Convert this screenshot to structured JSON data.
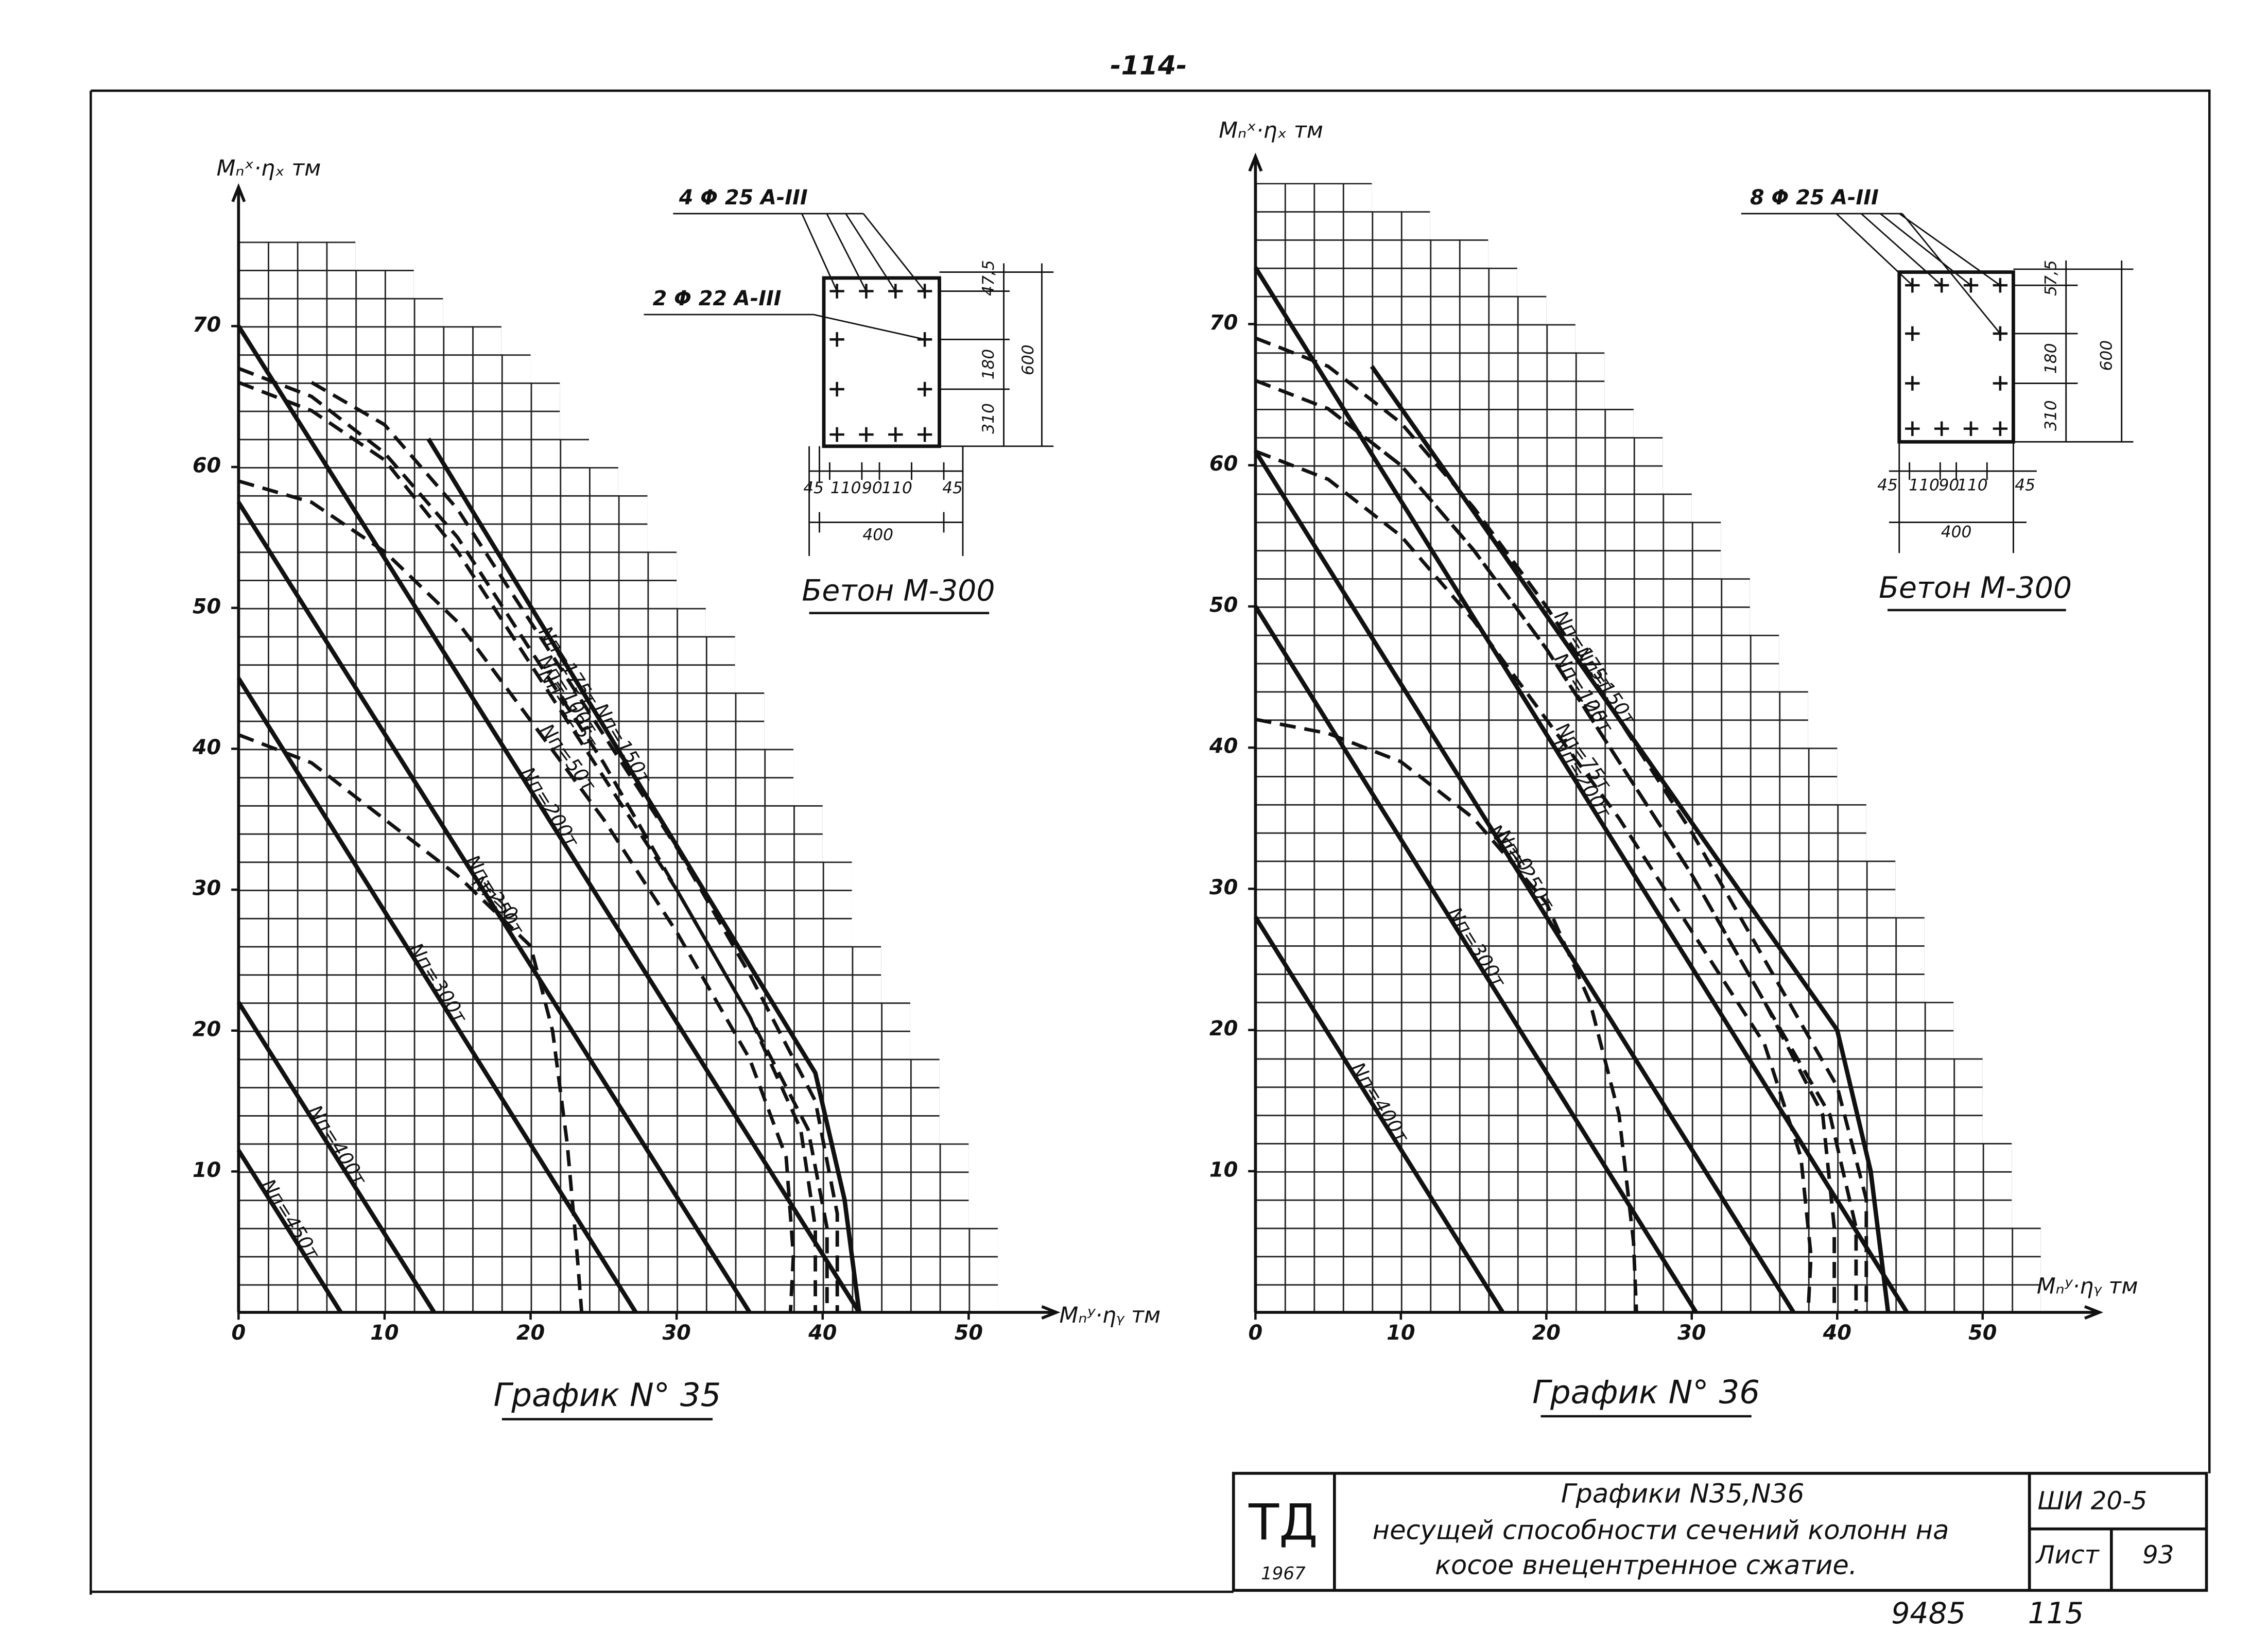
{
  "page_number": "-114-",
  "chart_data": [
    {
      "type": "line",
      "title": "График N° 35",
      "y_label": "Mₙˣ·ηₓ тм",
      "x_label": "Mₙʸ·ηᵧ тм",
      "xlim": [
        0,
        52
      ],
      "ylim": [
        0,
        78
      ],
      "xticks": [
        0,
        10,
        20,
        30,
        40,
        50
      ],
      "yticks": [
        10,
        20,
        30,
        40,
        50,
        60,
        70
      ],
      "series": [
        {
          "name": "Nп=450т",
          "color": "#111111",
          "dashed": false,
          "x": [
            0,
            7
          ],
          "values": [
            11.5,
            0
          ]
        },
        {
          "name": "Nп=400т",
          "color": "#111111",
          "dashed": false,
          "x": [
            0,
            13.4
          ],
          "values": [
            22,
            0
          ]
        },
        {
          "name": "Nп=300т",
          "color": "#111111",
          "dashed": false,
          "x": [
            0,
            27.2
          ],
          "values": [
            45,
            0
          ]
        },
        {
          "name": "Nп=250т",
          "color": "#111111",
          "dashed": false,
          "x": [
            0,
            35
          ],
          "values": [
            57.5,
            0
          ]
        },
        {
          "name": "Nп=200т",
          "color": "#111111",
          "dashed": false,
          "x": [
            0,
            42.5
          ],
          "values": [
            70,
            0
          ]
        },
        {
          "name": "Nп=150т",
          "color": "#111111",
          "dashed": false,
          "x": [
            13,
            39.5,
            41.5,
            42.5
          ],
          "values": [
            62,
            17,
            8,
            0
          ]
        },
        {
          "name": "Nп=0",
          "color": "#111111",
          "dashed": true,
          "x": [
            0,
            5,
            10,
            15,
            20,
            21.5,
            22.5,
            23.2,
            23.5
          ],
          "values": [
            41,
            39,
            35,
            31,
            26,
            20,
            12,
            4,
            0
          ]
        },
        {
          "name": "Nп=50т",
          "color": "#111111",
          "dashed": true,
          "x": [
            0,
            5,
            10,
            15,
            20,
            25,
            30,
            35,
            37.5,
            38,
            37.8
          ],
          "values": [
            59,
            57.5,
            54,
            49,
            42,
            35,
            27,
            18,
            11,
            4,
            0
          ]
        },
        {
          "name": "Nп=100т",
          "color": "#111111",
          "dashed": true,
          "x": [
            0,
            5,
            10,
            15,
            20,
            25,
            30,
            35,
            38.5,
            39.5,
            39.5
          ],
          "values": [
            67,
            65,
            61,
            55,
            47,
            39,
            30,
            21,
            13,
            6,
            0
          ]
        },
        {
          "name": "Nп=125т",
          "color": "#111111",
          "dashed": true,
          "x": [
            0,
            5,
            10,
            15,
            20,
            25,
            30,
            35,
            39,
            40.3,
            40.3
          ],
          "values": [
            66,
            64,
            60.5,
            54,
            46,
            38,
            30,
            21,
            13,
            6,
            0
          ]
        },
        {
          "name": "Nп=175т",
          "color": "#111111",
          "dashed": true,
          "x": [
            5,
            10,
            15,
            20,
            25,
            30,
            35,
            39.5,
            41,
            41
          ],
          "values": [
            66,
            63,
            57,
            49,
            41,
            33,
            24,
            15,
            7,
            0
          ]
        }
      ],
      "section": {
        "rebar_top": "4 Φ 25 A-III",
        "rebar_side": "2 Φ 22 A-III",
        "dims_vertical": [
          "47,5",
          "180",
          "310"
        ],
        "dim_total_vertical": "600",
        "dims_horizontal": [
          "45",
          "110",
          "90",
          "110",
          "45"
        ],
        "dim_total_horizontal": "400",
        "concrete": "Бетон М-300"
      }
    },
    {
      "type": "line",
      "title": "График N° 36",
      "y_label": "Mₙˣ·ηₓ тм",
      "x_label": "Mₙʸ·ηᵧ тм",
      "xlim": [
        0,
        54
      ],
      "ylim": [
        0,
        80
      ],
      "xticks": [
        0,
        10,
        20,
        30,
        40,
        50
      ],
      "yticks": [
        10,
        20,
        30,
        40,
        50,
        60,
        70
      ],
      "series": [
        {
          "name": "Nп=400т",
          "color": "#111111",
          "dashed": false,
          "x": [
            0,
            17
          ],
          "values": [
            28,
            0
          ]
        },
        {
          "name": "Nп=300т",
          "color": "#111111",
          "dashed": false,
          "x": [
            0,
            30.3
          ],
          "values": [
            50,
            0
          ]
        },
        {
          "name": "Nп=250т",
          "color": "#111111",
          "dashed": false,
          "x": [
            0,
            37
          ],
          "values": [
            61,
            0
          ]
        },
        {
          "name": "Nп=200т",
          "color": "#111111",
          "dashed": false,
          "x": [
            0,
            44.8
          ],
          "values": [
            74,
            0
          ]
        },
        {
          "name": "Nп=150т",
          "color": "#111111",
          "dashed": false,
          "x": [
            8,
            40,
            42.3,
            43.5
          ],
          "values": [
            67,
            20,
            10,
            0
          ]
        },
        {
          "name": "Nп=0",
          "color": "#111111",
          "dashed": true,
          "x": [
            0,
            5,
            10,
            15,
            20,
            23,
            25,
            26,
            26.2
          ],
          "values": [
            42,
            41,
            39,
            35,
            29,
            22,
            14,
            5,
            0
          ]
        },
        {
          "name": "Nп=75т",
          "color": "#111111",
          "dashed": true,
          "x": [
            0,
            5,
            10,
            15,
            20,
            25,
            30,
            35,
            37.5,
            38.2,
            38
          ],
          "values": [
            61,
            59,
            55,
            49,
            42,
            35,
            27,
            19,
            11,
            4,
            0
          ]
        },
        {
          "name": "Nп=100т",
          "color": "#111111",
          "dashed": true,
          "x": [
            0,
            5,
            10,
            15,
            20,
            25,
            30,
            35,
            39,
            39.8,
            39.8
          ],
          "values": [
            66,
            64,
            60,
            54,
            47,
            39,
            31,
            22,
            14,
            6,
            0
          ]
        },
        {
          "name": "Nп=125т",
          "color": "#111111",
          "dashed": true,
          "x": [
            5,
            10,
            15,
            20,
            25,
            30,
            35,
            39.5,
            41.3,
            41.3
          ],
          "values": [
            64,
            60,
            54,
            47,
            39,
            31,
            22,
            14,
            6,
            0
          ]
        },
        {
          "name": "Nп=175т",
          "color": "#111111",
          "dashed": true,
          "x": [
            0,
            5,
            10,
            15,
            20,
            25,
            30,
            35,
            40,
            42,
            42
          ],
          "values": [
            69,
            67,
            63,
            57,
            50,
            42,
            34,
            25,
            16,
            8,
            0
          ]
        }
      ],
      "section": {
        "rebar_top": "8 Φ 25 A-III",
        "dims_vertical": [
          "57,5",
          "180",
          "310"
        ],
        "dim_total_vertical": "600",
        "dims_horizontal": [
          "45",
          "110",
          "90",
          "110",
          "45"
        ],
        "dim_total_horizontal": "400",
        "concrete": "Бетон М-300"
      }
    }
  ],
  "title_block": {
    "logo": "ТД",
    "year": "1967",
    "title_lines": [
      "Графики N35,N36",
      "несущей способности сечений колонн на",
      "косое внецентренное сжатие."
    ],
    "code": "ШИ 20-5",
    "sheet_label": "Лист",
    "sheet": "93"
  },
  "archive_numbers": [
    "9485",
    "115"
  ]
}
